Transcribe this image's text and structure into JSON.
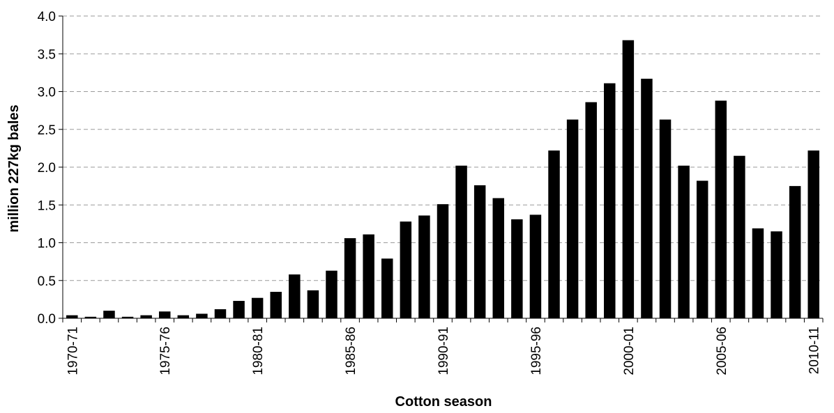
{
  "chart_data": {
    "type": "bar",
    "title": "",
    "xlabel": "Cotton season",
    "ylabel": "million 227kg bales",
    "ylim": [
      0,
      4.0
    ],
    "yticks": [
      "0.0",
      "0.5",
      "1.0",
      "1.5",
      "2.0",
      "2.5",
      "3.0",
      "3.5",
      "4.0"
    ],
    "grid": "horizontal dashed",
    "legend": "none",
    "bar_color": "#000000",
    "categories": [
      "1970-71",
      "1971-72",
      "1972-73",
      "1973-74",
      "1974-75",
      "1975-76",
      "1976-77",
      "1977-78",
      "1978-79",
      "1979-80",
      "1980-81",
      "1981-82",
      "1982-83",
      "1983-84",
      "1984-85",
      "1985-86",
      "1986-87",
      "1987-88",
      "1988-89",
      "1989-90",
      "1990-91",
      "1991-92",
      "1992-93",
      "1993-94",
      "1994-95",
      "1995-96",
      "1996-97",
      "1997-98",
      "1998-99",
      "1999-00",
      "2000-01",
      "2001-02",
      "2002-03",
      "2003-04",
      "2004-05",
      "2005-06",
      "2006-07",
      "2007-08",
      "2008-09",
      "2009-10",
      "2010-11"
    ],
    "labeled_categories": [
      "1970-71",
      "1975-76",
      "1980-81",
      "1985-86",
      "1990-91",
      "1995-96",
      "2000-01",
      "2005-06",
      "2010-11"
    ],
    "values": [
      0.04,
      0.02,
      0.1,
      0.02,
      0.04,
      0.09,
      0.04,
      0.06,
      0.12,
      0.23,
      0.27,
      0.35,
      0.58,
      0.37,
      0.63,
      1.06,
      1.11,
      0.79,
      1.28,
      1.36,
      1.51,
      2.02,
      1.76,
      1.59,
      1.31,
      1.37,
      2.22,
      2.63,
      2.86,
      3.11,
      3.68,
      3.17,
      2.63,
      2.02,
      1.82,
      2.88,
      2.15,
      1.19,
      1.15,
      1.75,
      2.22
    ]
  }
}
